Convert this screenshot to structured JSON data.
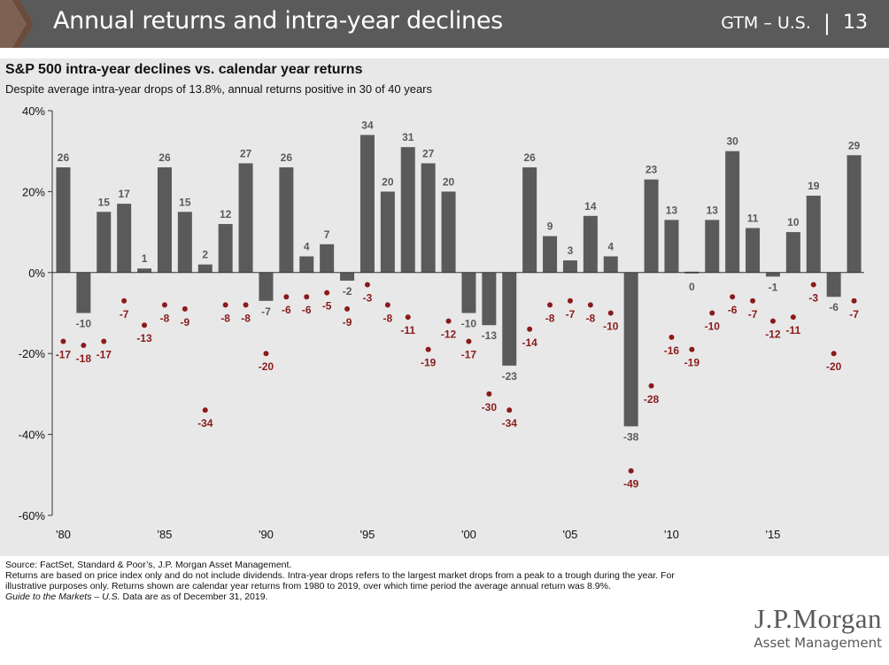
{
  "header": {
    "title": "Annual returns and intra-year declines",
    "section": "GTM – U.S.",
    "separator": "|",
    "page_number": "13",
    "bar_color": "#5a5a5a",
    "chevron_color": "#6b4c3b"
  },
  "chart_data": {
    "type": "bar",
    "title": "S&P 500 intra-year declines vs. calendar year returns",
    "subtitle": "Despite average intra-year drops of 13.8%, annual returns positive in 30 of 40 years",
    "x": [
      1980,
      1981,
      1982,
      1983,
      1984,
      1985,
      1986,
      1987,
      1988,
      1989,
      1990,
      1991,
      1992,
      1993,
      1994,
      1995,
      1996,
      1997,
      1998,
      1999,
      2000,
      2001,
      2002,
      2003,
      2004,
      2005,
      2006,
      2007,
      2008,
      2009,
      2010,
      2011,
      2012,
      2013,
      2014,
      2015,
      2016,
      2017,
      2018,
      2019
    ],
    "x_tick_labels": [
      {
        "year": 1980,
        "label": "'80"
      },
      {
        "year": 1985,
        "label": "'85"
      },
      {
        "year": 1990,
        "label": "'90"
      },
      {
        "year": 1995,
        "label": "'95"
      },
      {
        "year": 2000,
        "label": "'00"
      },
      {
        "year": 2005,
        "label": "'05"
      },
      {
        "year": 2010,
        "label": "'10"
      },
      {
        "year": 2015,
        "label": "'15"
      }
    ],
    "y_ticks": [
      40,
      20,
      0,
      -20,
      -40,
      -60
    ],
    "y_tick_labels": [
      "40%",
      "20%",
      "0%",
      "-20%",
      "-40%",
      "-60%"
    ],
    "ylim": [
      -60,
      40
    ],
    "series": [
      {
        "kind": "bar",
        "color": "#5a5a5a",
        "values": [
          26,
          -10,
          15,
          17,
          1,
          26,
          15,
          2,
          12,
          27,
          -7,
          26,
          4,
          7,
          -2,
          34,
          20,
          31,
          27,
          20,
          -10,
          -13,
          -23,
          26,
          9,
          3,
          14,
          4,
          -38,
          23,
          13,
          0,
          13,
          30,
          11,
          -1,
          10,
          19,
          -6,
          29
        ],
        "labels": [
          "26",
          "-10",
          "15",
          "17",
          "1",
          "26",
          "15",
          "2",
          "12",
          "27",
          "-7",
          "26",
          "4",
          "7",
          "-2",
          "34",
          "20",
          "31",
          "27",
          "20",
          "-10",
          "-13",
          "-23",
          "26",
          "9",
          "3",
          "14",
          "4",
          "-38",
          "23",
          "13",
          "0",
          "13",
          "30",
          "11",
          "-1",
          "10",
          "19",
          "-6",
          "29"
        ]
      },
      {
        "kind": "dot",
        "color": "#8b1a1a",
        "values": [
          -17,
          -18,
          -17,
          -7,
          -13,
          -8,
          -9,
          -34,
          -8,
          -8,
          -20,
          -6,
          -6,
          -5,
          -9,
          -3,
          -8,
          -11,
          -19,
          -12,
          -17,
          -30,
          -34,
          -14,
          -8,
          -7,
          -8,
          -10,
          -49,
          -28,
          -16,
          -19,
          -10,
          -6,
          -7,
          -12,
          -11,
          -3,
          -20,
          -7
        ],
        "labels": [
          "-17",
          "-18",
          "-17",
          "-7",
          "-13",
          "-8",
          "-9",
          "-34",
          "-8",
          "-8",
          "-20",
          "-6",
          "-6",
          "-5",
          "-9",
          "-3",
          "-8",
          "-11",
          "-19",
          "-12",
          "-17",
          "-30",
          "-34",
          "-14",
          "-8",
          "-7",
          "-8",
          "-10",
          "-49",
          "-28",
          "-16",
          "-19",
          "-10",
          "-6",
          "-7",
          "-12",
          "-11",
          "-3",
          "-20",
          "-7"
        ]
      }
    ]
  },
  "footnotes": {
    "source": "Source: FactSet, Standard & Poor’s, J.P. Morgan Asset Management.",
    "note": "Returns are based on price index only and do not include dividends. Intra-year drops refers to the largest market drops from a peak to a trough during the year. For illustrative purposes only. Returns shown are calendar year returns from 1980 to 2019, over which time period the average annual return was 8.9%.",
    "guide_italic": "Guide to the Markets – U.S.",
    "guide_rest": " Data are as of December 31, 2019."
  },
  "logo": {
    "main": "J.P.Morgan",
    "sub": "Asset Management"
  }
}
